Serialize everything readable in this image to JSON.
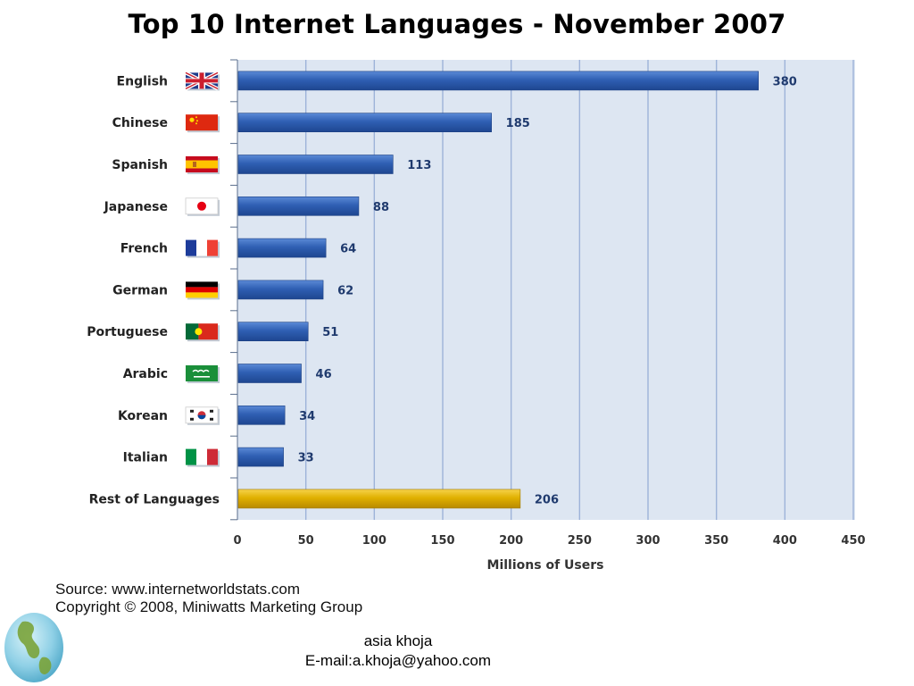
{
  "title": "Top 10 Internet Languages - November 2007",
  "chart_data": {
    "type": "bar",
    "orientation": "horizontal",
    "title": "Top 10 Internet Languages - November 2007",
    "xlabel": "Millions of Users",
    "ylabel": "",
    "xlim": [
      0,
      450
    ],
    "x_ticks": [
      "0",
      "50",
      "100",
      "150",
      "200",
      "250",
      "300",
      "350",
      "400",
      "450"
    ],
    "grid": true,
    "categories": [
      "English",
      "Chinese",
      "Spanish",
      "Japanese",
      "French",
      "German",
      "Portuguese",
      "Arabic",
      "Korean",
      "Italian",
      "Rest of Languages"
    ],
    "values": [
      380,
      185,
      113,
      88,
      64,
      62,
      51,
      46,
      34,
      33,
      206
    ],
    "value_labels": [
      "380",
      "185",
      "113",
      "88",
      "64",
      "62",
      "51",
      "46",
      "34",
      "33",
      "206"
    ],
    "flags": [
      "uk-flag-icon",
      "china-flag-icon",
      "spain-flag-icon",
      "japan-flag-icon",
      "france-flag-icon",
      "germany-flag-icon",
      "portugal-flag-icon",
      "saudi-arabia-flag-icon",
      "south-korea-flag-icon",
      "italy-flag-icon",
      ""
    ],
    "colors": {
      "bar": "#2f5fb3",
      "bar_highlight": "#e0b000",
      "plot_background": "#dde6f2",
      "grid": "#9db3d9",
      "value_label": "#1f3a6e"
    }
  },
  "footer": {
    "source": "Source: www.internetworldstats.com",
    "copyright": "Copyright © 2008, Miniwatts Marketing Group",
    "author_name": "asia khoja",
    "author_email": "E-mail:a.khoja@yahoo.com"
  },
  "logo": "globe-icon"
}
